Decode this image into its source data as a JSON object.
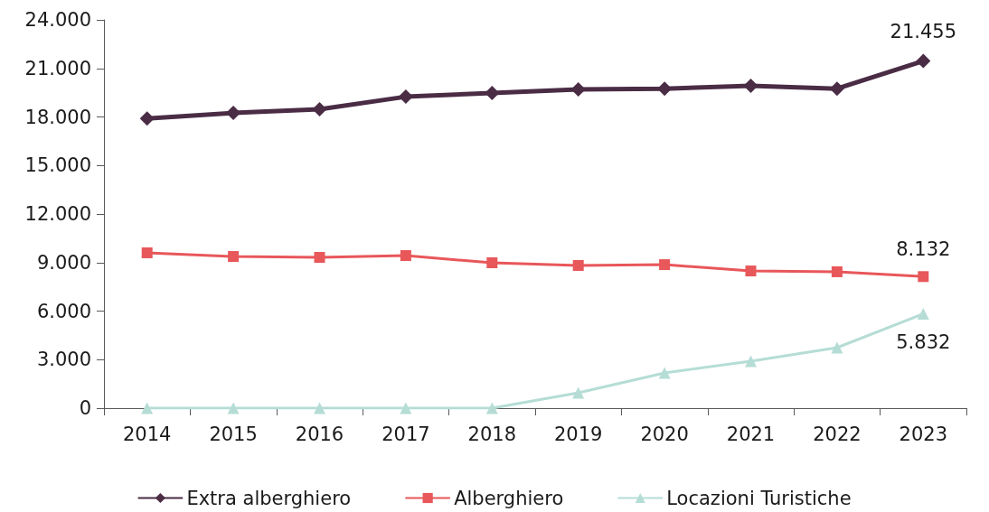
{
  "chart_data": {
    "type": "line",
    "categories": [
      "2014",
      "2015",
      "2016",
      "2017",
      "2018",
      "2019",
      "2020",
      "2021",
      "2022",
      "2023"
    ],
    "series": [
      {
        "name": "Extra alberghiero",
        "color": "#4a2c45",
        "marker": "diamond",
        "values": [
          17900,
          18250,
          18470,
          19250,
          19480,
          19700,
          19750,
          19920,
          19750,
          21455
        ],
        "value_labels": [
          null,
          null,
          null,
          null,
          null,
          null,
          null,
          null,
          null,
          "21.455"
        ]
      },
      {
        "name": "Alberghiero",
        "color": "#e8575a",
        "marker": "square",
        "values": [
          9600,
          9375,
          9320,
          9430,
          8985,
          8820,
          8870,
          8480,
          8430,
          8132
        ],
        "value_labels": [
          null,
          null,
          null,
          null,
          null,
          null,
          null,
          null,
          null,
          "8.132"
        ]
      },
      {
        "name": "Locazioni Turistiche",
        "color": "#b5ddd5",
        "marker": "triangle",
        "values": [
          0,
          0,
          0,
          0,
          0,
          950,
          2180,
          2900,
          3740,
          5832
        ],
        "value_labels": [
          null,
          null,
          null,
          null,
          null,
          null,
          null,
          null,
          null,
          "5.832"
        ]
      }
    ],
    "ylim": [
      0,
      24000
    ],
    "yticks": [
      {
        "value": 0,
        "label": "0"
      },
      {
        "value": 3000,
        "label": "3.000"
      },
      {
        "value": 6000,
        "label": "6.000"
      },
      {
        "value": 9000,
        "label": "9.000"
      },
      {
        "value": 12000,
        "label": "12.000"
      },
      {
        "value": 15000,
        "label": "15.000"
      },
      {
        "value": 18000,
        "label": "18.000"
      },
      {
        "value": 21000,
        "label": "21.000"
      },
      {
        "value": 24000,
        "label": "24.000"
      }
    ],
    "grid": false,
    "legend": "bottom",
    "line_style": "solid"
  }
}
